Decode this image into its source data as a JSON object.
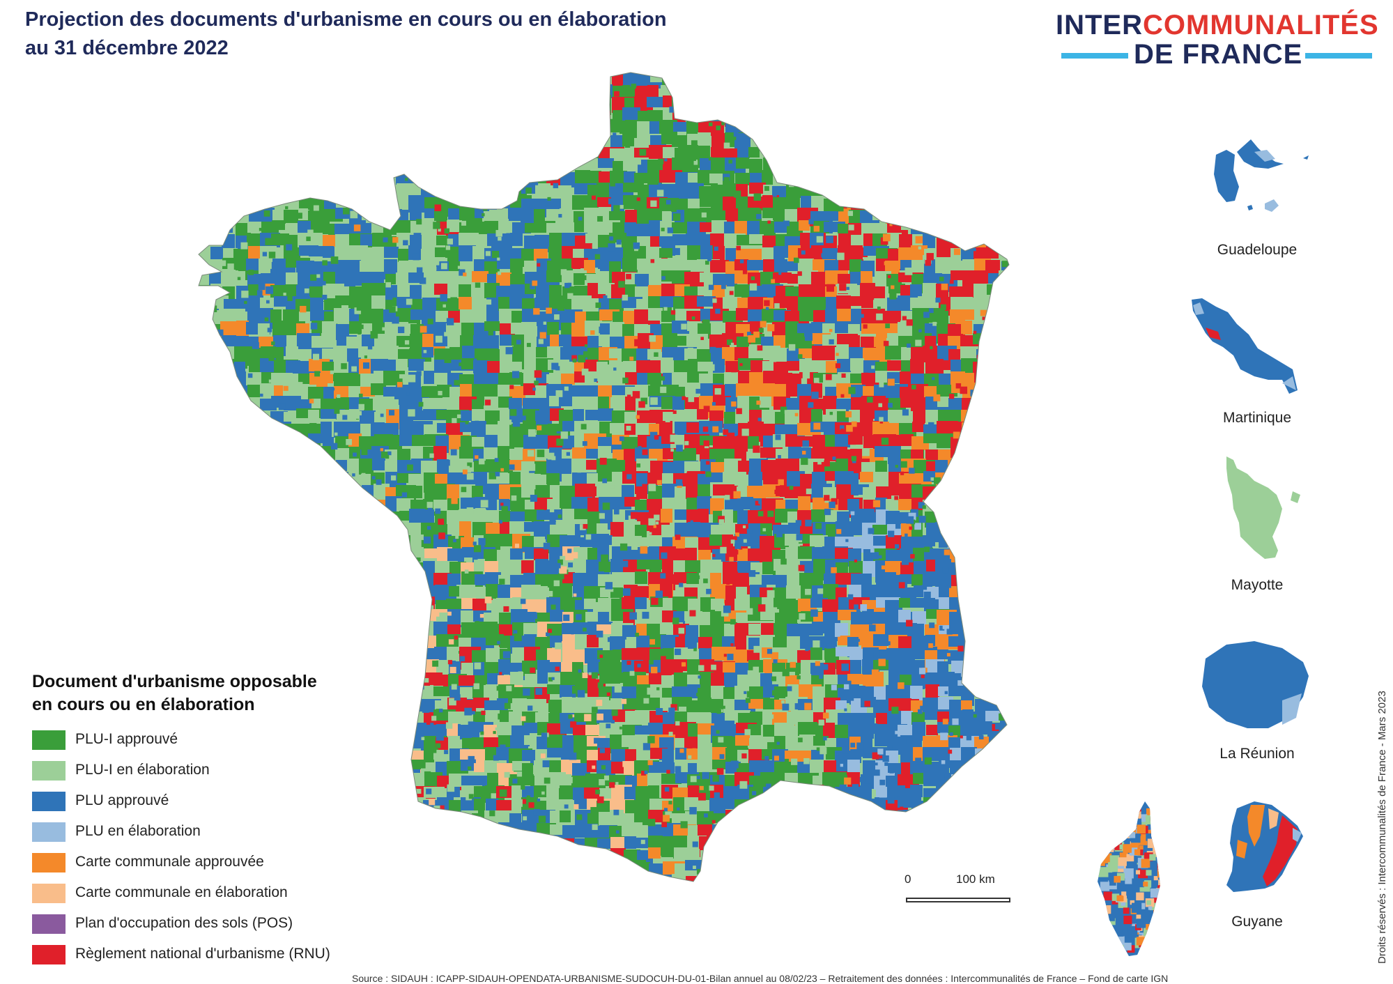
{
  "title": {
    "line1": "Projection des documents d'urbanisme en cours ou en élaboration",
    "line2": "au 31 décembre 2022"
  },
  "logo": {
    "word1_part1": "INTER",
    "word1_part2": "COMMUNALITÉS",
    "word2": "DE FRANCE",
    "colors": {
      "navy": "#1f2a5a",
      "red": "#e2362f",
      "blue": "#3cb4e5"
    }
  },
  "legend": {
    "title_line1": "Document d'urbanisme opposable",
    "title_line2": "en cours ou en élaboration",
    "items": [
      {
        "label": "PLU-I approuvé",
        "color": "#3a9e3a"
      },
      {
        "label": "PLU-I en élaboration",
        "color": "#9ccf98"
      },
      {
        "label": "PLU approuvé",
        "color": "#2f74b8"
      },
      {
        "label": "PLU en élaboration",
        "color": "#98bcdf"
      },
      {
        "label": "Carte communale approuvée",
        "color": "#f4892a"
      },
      {
        "label": "Carte communale en élaboration",
        "color": "#f9bd8a"
      },
      {
        "label": "Plan d'occupation des sols (POS)",
        "color": "#8a5a9e"
      },
      {
        "label": "Règlement national d'urbanisme (RNU)",
        "color": "#e0202a"
      }
    ]
  },
  "insets": [
    {
      "name": "Guadeloupe",
      "colors": [
        "#2f74b8",
        "#98bcdf"
      ]
    },
    {
      "name": "Martinique",
      "colors": [
        "#2f74b8",
        "#98bcdf",
        "#e0202a"
      ]
    },
    {
      "name": "Mayotte",
      "colors": [
        "#9ccf98"
      ]
    },
    {
      "name": "La Réunion",
      "colors": [
        "#2f74b8",
        "#98bcdf"
      ]
    },
    {
      "name": "Guyane",
      "colors": [
        "#2f74b8",
        "#f4892a",
        "#e0202a",
        "#98bcdf"
      ]
    }
  ],
  "scale_bar": {
    "start": "0",
    "end": "100 km"
  },
  "credit": "Droits réservés : Intercommunalités de France - Mars 2023",
  "source": "Source : SIDAUH : ICAPP-SIDAUH-OPENDATA-URBANISME-SUDOCUH-DU-01-Bilan annuel au 08/02/23 – Retraitement des données : Intercommunalités de France – Fond de carte IGN"
}
